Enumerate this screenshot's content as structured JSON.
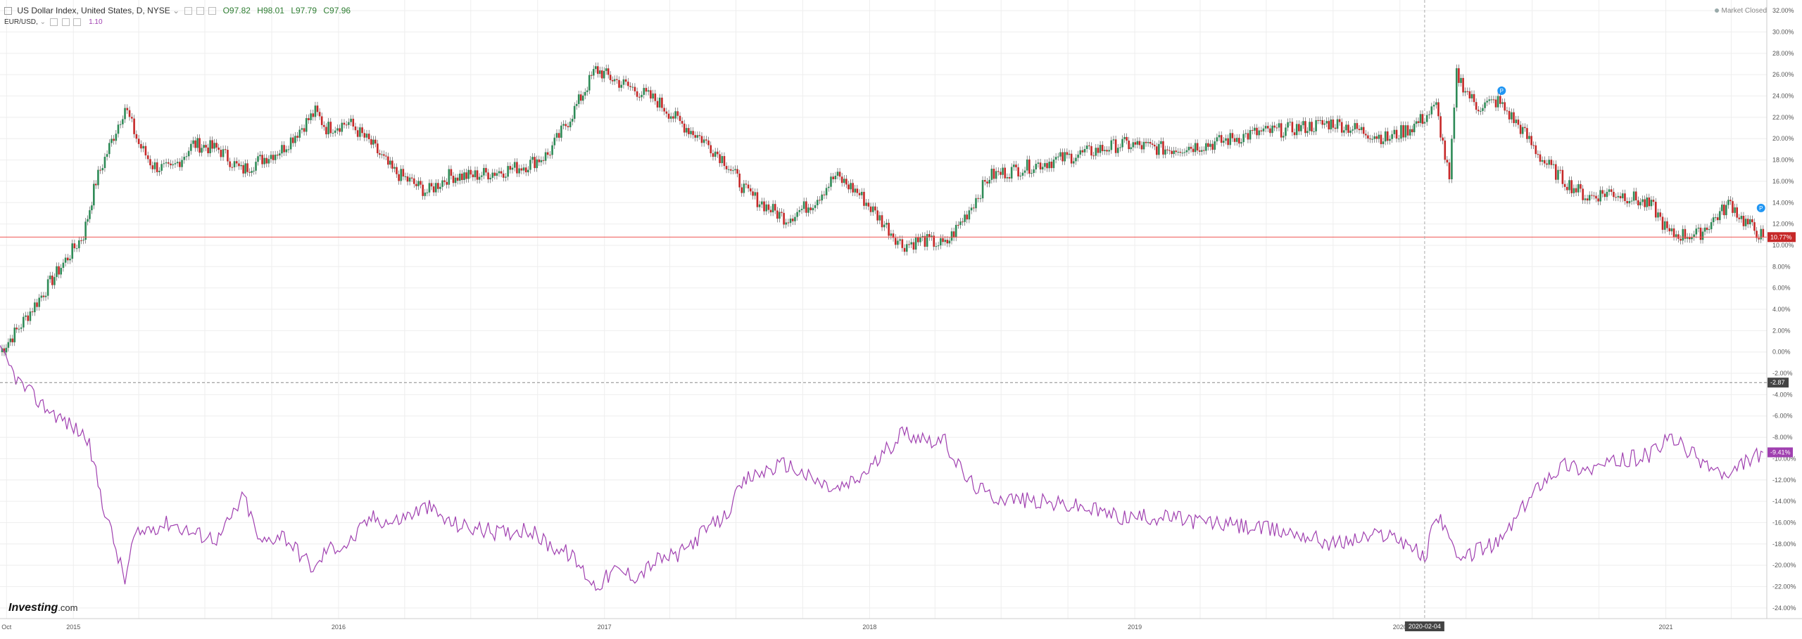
{
  "header": {
    "title": "US Dollar Index, United States, D, NYSE",
    "open": "O97.82",
    "high": "H98.01",
    "low": "L97.79",
    "close": "C97.96",
    "compare_label": "EUR/USD,",
    "compare_value": "1.10",
    "market_status": "Market Closed"
  },
  "branding": {
    "logo_main": "Investing",
    "logo_suffix": ".com"
  },
  "colors": {
    "up": "#26a69a",
    "candle_up": "#2e8b57",
    "candle_down": "#c62828",
    "compare_line": "#a040b0",
    "current_line": "#ef5350",
    "grid": "#eeeeee"
  },
  "chart_data": {
    "type": "line",
    "y_axis": {
      "ticks": [
        "32.00%",
        "30.00%",
        "28.00%",
        "26.00%",
        "24.00%",
        "22.00%",
        "20.00%",
        "18.00%",
        "16.00%",
        "14.00%",
        "12.00%",
        "10.00%",
        "8.00%",
        "6.00%",
        "4.00%",
        "2.00%",
        "0.00%",
        "-2.00%",
        "-4.00%",
        "-6.00%",
        "-8.00%",
        "-10.00%",
        "-12.00%",
        "-14.00%",
        "-16.00%",
        "-18.00%",
        "-20.00%",
        "-22.00%",
        "-24.00%"
      ],
      "range": [
        -25,
        33
      ]
    },
    "x_axis": {
      "ticks": [
        "Oct",
        "2015",
        "2016",
        "2017",
        "2018",
        "2019",
        "2020",
        "2021"
      ],
      "crosshair_label": "2020-02-04"
    },
    "markers": {
      "current_usd": "10.77%",
      "current_eur": "-9.41%",
      "crosshair_y": "-2.87"
    },
    "series": [
      {
        "name": "US Dollar Index",
        "style": "candlestick",
        "x": [
          "2014-09-22",
          "2014-10-15",
          "2014-11-15",
          "2014-12-15",
          "2015-01-15",
          "2015-02-01",
          "2015-03-13",
          "2015-04-01",
          "2015-04-20",
          "2015-05-15",
          "2015-06-15",
          "2015-07-20",
          "2015-08-20",
          "2015-09-15",
          "2015-10-15",
          "2015-11-30",
          "2015-12-15",
          "2016-01-15",
          "2016-02-15",
          "2016-03-15",
          "2016-05-02",
          "2016-06-01",
          "2016-07-01",
          "2016-08-15",
          "2016-09-15",
          "2016-10-15",
          "2016-11-15",
          "2016-12-20",
          "2017-01-15",
          "2017-02-15",
          "2017-03-15",
          "2017-04-15",
          "2017-05-15",
          "2017-06-15",
          "2017-07-15",
          "2017-08-15",
          "2017-09-08",
          "2017-10-15",
          "2017-11-15",
          "2017-12-15",
          "2018-01-15",
          "2018-02-15",
          "2018-03-15",
          "2018-04-15",
          "2018-05-15",
          "2018-06-15",
          "2018-08-15",
          "2018-10-15",
          "2018-12-15",
          "2019-02-15",
          "2019-04-15",
          "2019-06-15",
          "2019-08-15",
          "2019-10-01",
          "2019-12-15",
          "2020-01-15",
          "2020-02-04",
          "2020-02-20",
          "2020-03-09",
          "2020-03-19",
          "2020-04-15",
          "2020-05-15",
          "2020-06-15",
          "2020-07-15",
          "2020-08-15",
          "2020-09-15",
          "2020-10-15",
          "2020-11-15",
          "2020-12-15",
          "2021-01-06",
          "2021-02-15",
          "2021-03-31",
          "2021-04-15",
          "2021-05-15"
        ],
        "values": [
          0.0,
          2.0,
          5.0,
          8.0,
          11.0,
          16.0,
          23.0,
          19.5,
          17.5,
          17.0,
          19.5,
          19.0,
          17.0,
          18.0,
          19.0,
          22.5,
          21.0,
          21.5,
          19.5,
          17.0,
          15.0,
          16.5,
          16.5,
          17.0,
          17.5,
          18.5,
          22.0,
          26.5,
          25.5,
          24.5,
          23.5,
          21.5,
          20.0,
          18.0,
          15.0,
          13.5,
          12.5,
          14.0,
          16.5,
          15.0,
          12.5,
          10.0,
          10.5,
          10.0,
          13.0,
          16.5,
          17.5,
          18.5,
          19.5,
          19.0,
          19.5,
          20.5,
          21.0,
          21.5,
          20.0,
          21.0,
          22.0,
          23.0,
          16.0,
          26.0,
          23.0,
          23.5,
          21.0,
          18.0,
          16.0,
          14.5,
          15.0,
          14.5,
          13.5,
          11.0,
          11.0,
          14.0,
          12.5,
          10.77
        ]
      },
      {
        "name": "EUR/USD",
        "style": "line",
        "x": [
          "2014-09-22",
          "2014-10-20",
          "2014-11-20",
          "2014-12-20",
          "2015-01-20",
          "2015-02-10",
          "2015-03-13",
          "2015-03-25",
          "2015-04-15",
          "2015-05-15",
          "2015-06-15",
          "2015-07-20",
          "2015-08-24",
          "2015-09-15",
          "2015-10-15",
          "2015-11-30",
          "2015-12-15",
          "2016-01-15",
          "2016-02-15",
          "2016-03-15",
          "2016-05-02",
          "2016-06-01",
          "2016-07-01",
          "2016-08-15",
          "2016-09-15",
          "2016-10-15",
          "2016-11-15",
          "2016-12-20",
          "2017-01-15",
          "2017-02-15",
          "2017-03-15",
          "2017-04-15",
          "2017-05-15",
          "2017-06-15",
          "2017-07-15",
          "2017-08-15",
          "2017-09-08",
          "2017-10-15",
          "2017-11-15",
          "2017-12-15",
          "2018-01-15",
          "2018-02-15",
          "2018-03-15",
          "2018-04-15",
          "2018-05-15",
          "2018-06-15",
          "2018-08-15",
          "2018-10-15",
          "2018-12-15",
          "2019-02-15",
          "2019-04-15",
          "2019-06-15",
          "2019-08-15",
          "2019-10-01",
          "2019-12-15",
          "2020-01-15",
          "2020-02-04",
          "2020-02-20",
          "2020-03-09",
          "2020-03-19",
          "2020-04-15",
          "2020-05-15",
          "2020-06-15",
          "2020-07-15",
          "2020-08-15",
          "2020-09-15",
          "2020-10-15",
          "2020-11-15",
          "2020-12-15",
          "2021-01-06",
          "2021-02-15",
          "2021-03-31",
          "2021-04-15",
          "2021-05-15"
        ],
        "values": [
          0.0,
          -3.0,
          -5.0,
          -6.5,
          -8.0,
          -14.0,
          -21.5,
          -17.5,
          -16.5,
          -16.0,
          -17.0,
          -17.5,
          -13.5,
          -18.0,
          -17.0,
          -20.5,
          -18.5,
          -18.0,
          -15.5,
          -16.0,
          -14.5,
          -16.0,
          -16.5,
          -17.0,
          -16.5,
          -18.0,
          -19.0,
          -22.0,
          -20.5,
          -21.0,
          -19.5,
          -19.0,
          -17.0,
          -15.5,
          -12.0,
          -11.0,
          -10.5,
          -12.0,
          -13.0,
          -12.0,
          -10.0,
          -7.5,
          -8.0,
          -8.5,
          -12.0,
          -13.5,
          -14.0,
          -14.5,
          -15.5,
          -15.5,
          -16.0,
          -16.5,
          -17.0,
          -18.0,
          -17.0,
          -18.0,
          -19.5,
          -15.0,
          -17.0,
          -20.0,
          -18.5,
          -18.0,
          -15.0,
          -12.0,
          -10.5,
          -11.0,
          -10.5,
          -10.0,
          -9.5,
          -8.0,
          -10.0,
          -12.0,
          -10.5,
          -9.41
        ]
      }
    ]
  }
}
